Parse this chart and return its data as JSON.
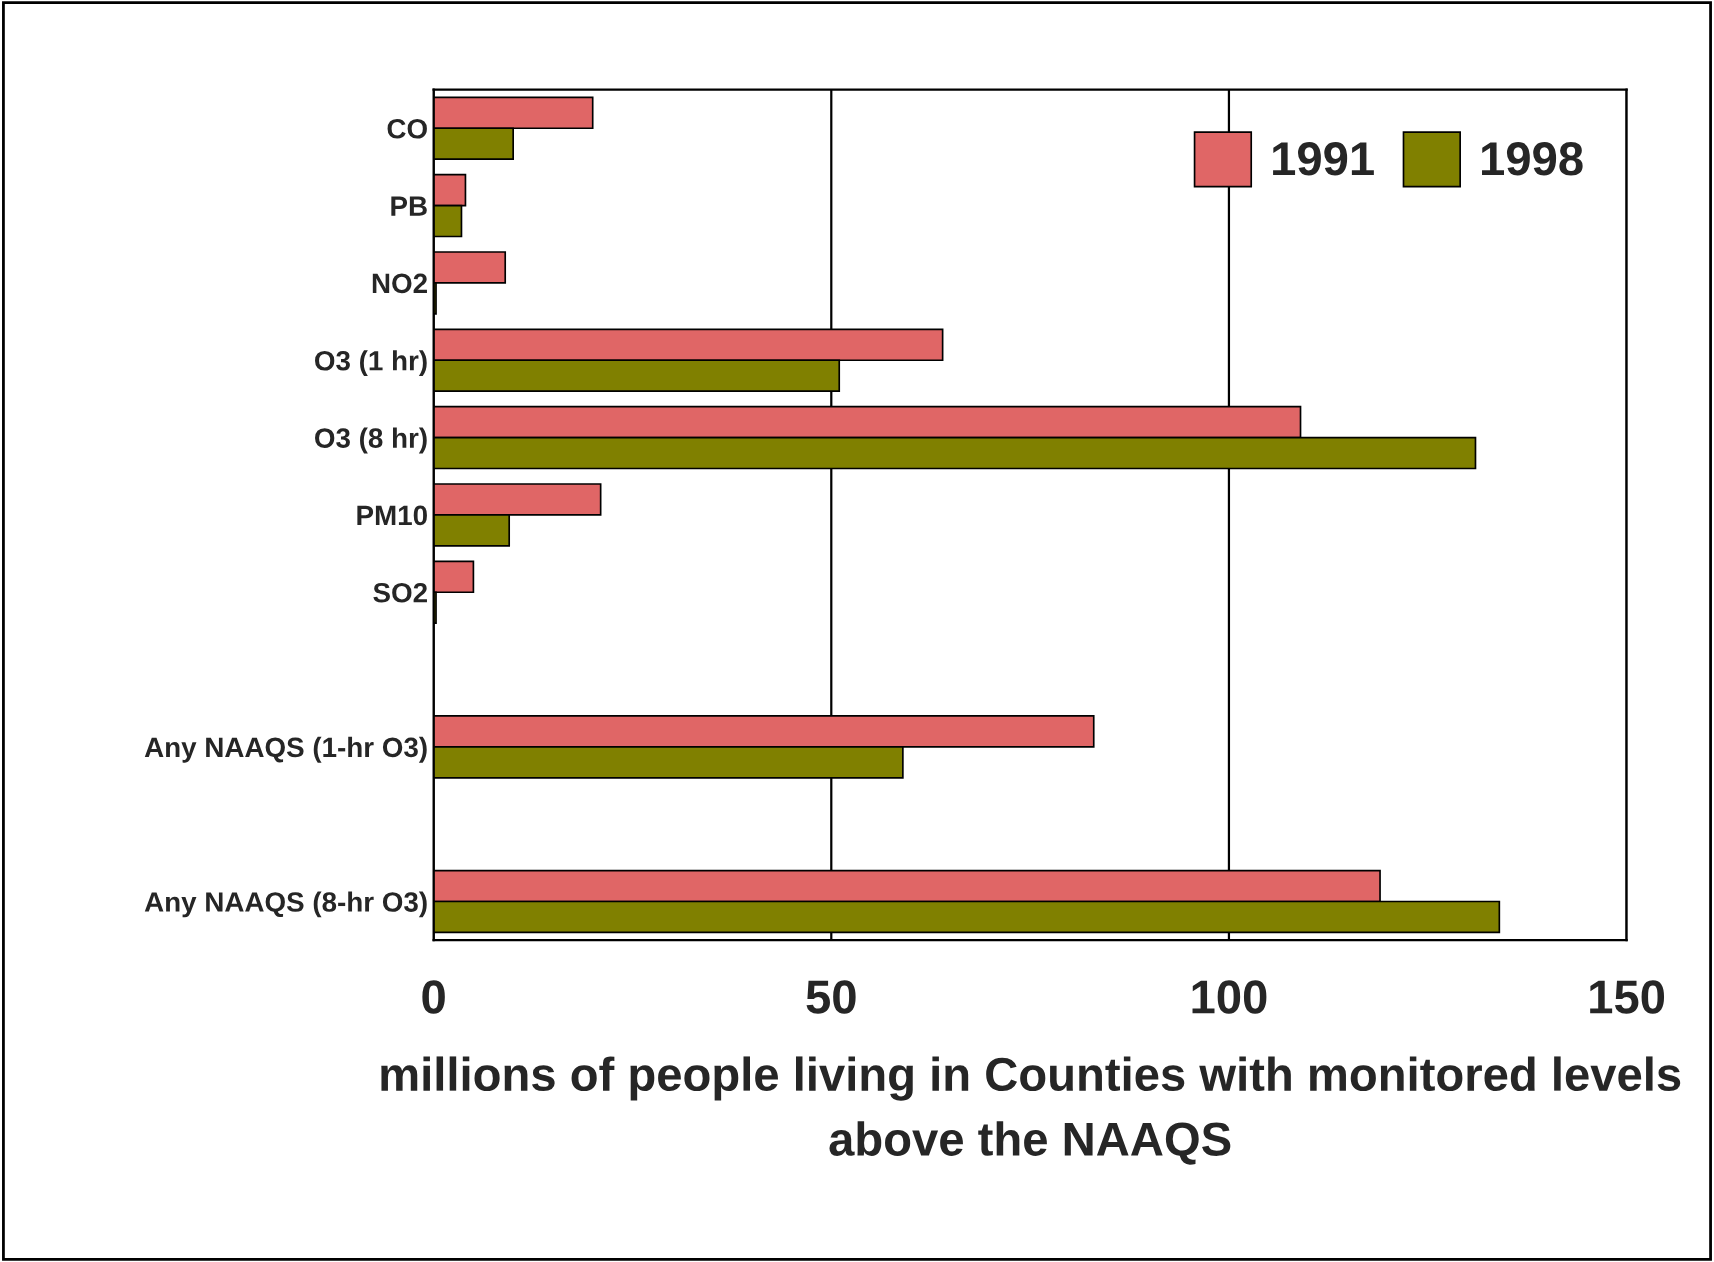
{
  "chart_data": {
    "type": "bar",
    "orientation": "horizontal",
    "categories": [
      "CO",
      "PB",
      "NO2",
      "O3 (1 hr)",
      "O3 (8 hr)",
      "PM10",
      "SO2",
      null,
      "Any NAAQS (1-hr O3)",
      null,
      "Any NAAQS (8-hr O3)"
    ],
    "series": [
      {
        "name": "1991",
        "color": "#e06666",
        "values": [
          20,
          4,
          9,
          64,
          109,
          21,
          5,
          null,
          83,
          null,
          119
        ]
      },
      {
        "name": "1998",
        "color": "#808000",
        "values": [
          10,
          3.5,
          0.3,
          51,
          131,
          9.5,
          0.3,
          null,
          59,
          null,
          134
        ]
      }
    ],
    "xlabel": "millions of people living in Counties with monitored levels above the NAAQS",
    "xlim": [
      0,
      150
    ],
    "xticks": [
      0,
      50,
      100,
      150
    ],
    "grid": "x",
    "legend": "top right"
  }
}
